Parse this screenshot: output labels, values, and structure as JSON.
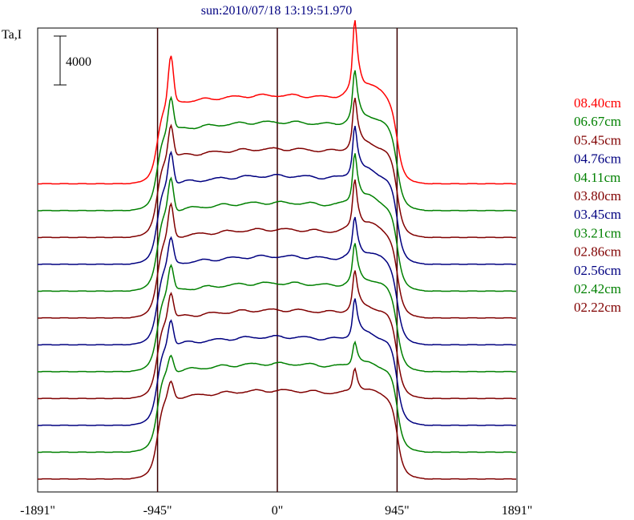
{
  "chart_data": {
    "type": "line",
    "title": "sun:2010/07/18 13:19:51.970",
    "ylabel": "Ta,I",
    "scale_bar_label": "4000",
    "scale_bar_value": 4000,
    "xlim": [
      -1891,
      1891
    ],
    "x_ticks": [
      {
        "value": -1891,
        "label": "-1891\""
      },
      {
        "value": -945,
        "label": "-945\""
      },
      {
        "value": 0,
        "label": "0\""
      },
      {
        "value": 945,
        "label": "945\""
      },
      {
        "value": 1891,
        "label": "1891\""
      }
    ],
    "vertical_lines": [
      -945,
      0,
      945
    ],
    "grid": false,
    "legend_position": "right",
    "series": [
      {
        "name": "08.40cm",
        "color": "#ff0000",
        "offset": 11,
        "peak_shape": "strong"
      },
      {
        "name": "06.67cm",
        "color": "#008000",
        "offset": 10,
        "peak_shape": "medium"
      },
      {
        "name": "05.45cm",
        "color": "#800000",
        "offset": 9,
        "peak_shape": "medium"
      },
      {
        "name": "04.76cm",
        "color": "#000080",
        "offset": 8,
        "peak_shape": "medium"
      },
      {
        "name": "04.11cm",
        "color": "#008000",
        "offset": 7,
        "peak_shape": "medium"
      },
      {
        "name": "03.80cm",
        "color": "#800000",
        "offset": 6,
        "peak_shape": "medium"
      },
      {
        "name": "03.45cm",
        "color": "#000080",
        "offset": 5,
        "peak_shape": "weak"
      },
      {
        "name": "03.21cm",
        "color": "#008000",
        "offset": 4,
        "peak_shape": "weak"
      },
      {
        "name": "02.86cm",
        "color": "#800000",
        "offset": 3,
        "peak_shape": "weak"
      },
      {
        "name": "02.56cm",
        "color": "#000080",
        "offset": 2,
        "peak_shape": "weak"
      },
      {
        "name": "02.42cm",
        "color": "#008000",
        "offset": 1,
        "peak_shape": "faint"
      },
      {
        "name": "02.22cm",
        "color": "#800000",
        "offset": 0,
        "peak_shape": "faint"
      }
    ]
  }
}
